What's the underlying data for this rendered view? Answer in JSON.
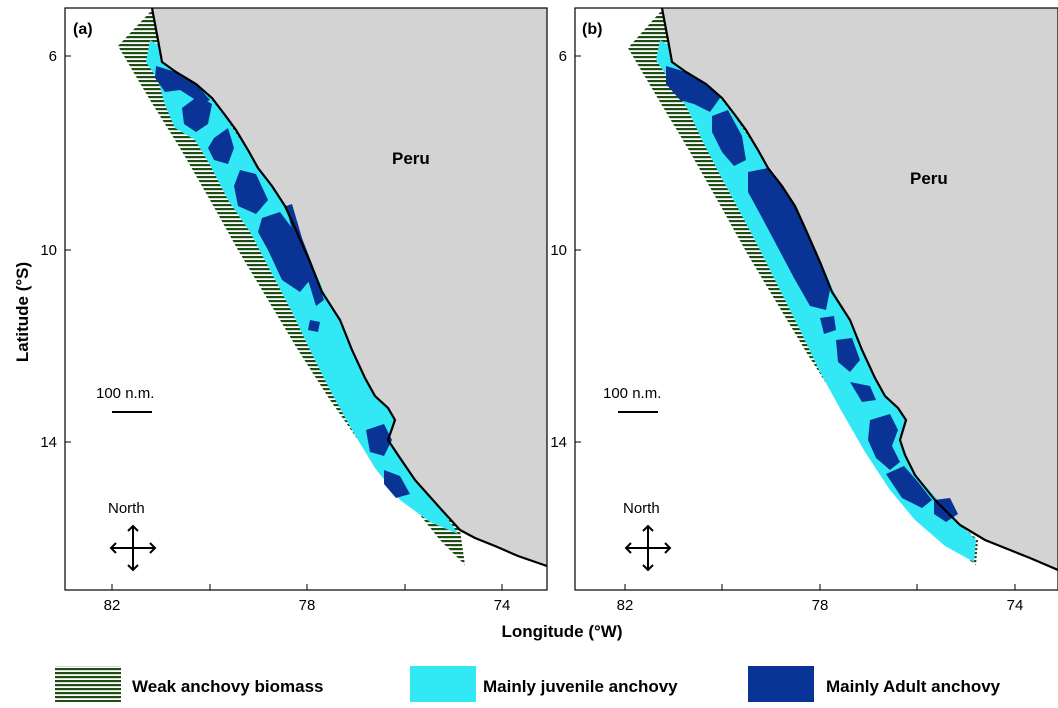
{
  "colors": {
    "land": "#d3d3d3",
    "coast": "#000000",
    "weak": "#1e4d14",
    "weak_stripe": "#ffffff",
    "juvenile": "#33e8f5",
    "adult": "#0a3396"
  },
  "panels": [
    {
      "label": "(a)",
      "country_label": "Peru",
      "scale_label": "100 n.m.",
      "north_label": "North",
      "lat_ticks": [
        "6",
        "10",
        "14"
      ],
      "lon_ticks": [
        "82",
        "78",
        "74"
      ]
    },
    {
      "label": "(b)",
      "country_label": "Peru",
      "scale_label": "100 n.m.",
      "north_label": "North",
      "lat_ticks": [
        "6",
        "10",
        "14"
      ],
      "lon_ticks": [
        "82",
        "78",
        "74"
      ]
    }
  ],
  "axes": {
    "ylabel": "Latitude (°S)",
    "xlabel": "Longitude (°W)"
  },
  "legend": [
    {
      "label": "Weak anchovy biomass",
      "pattern": "striped-green"
    },
    {
      "label": "Mainly juvenile anchovy",
      "color": "#33e8f5"
    },
    {
      "label": "Mainly Adult anchovy",
      "color": "#0a3396"
    }
  ]
}
